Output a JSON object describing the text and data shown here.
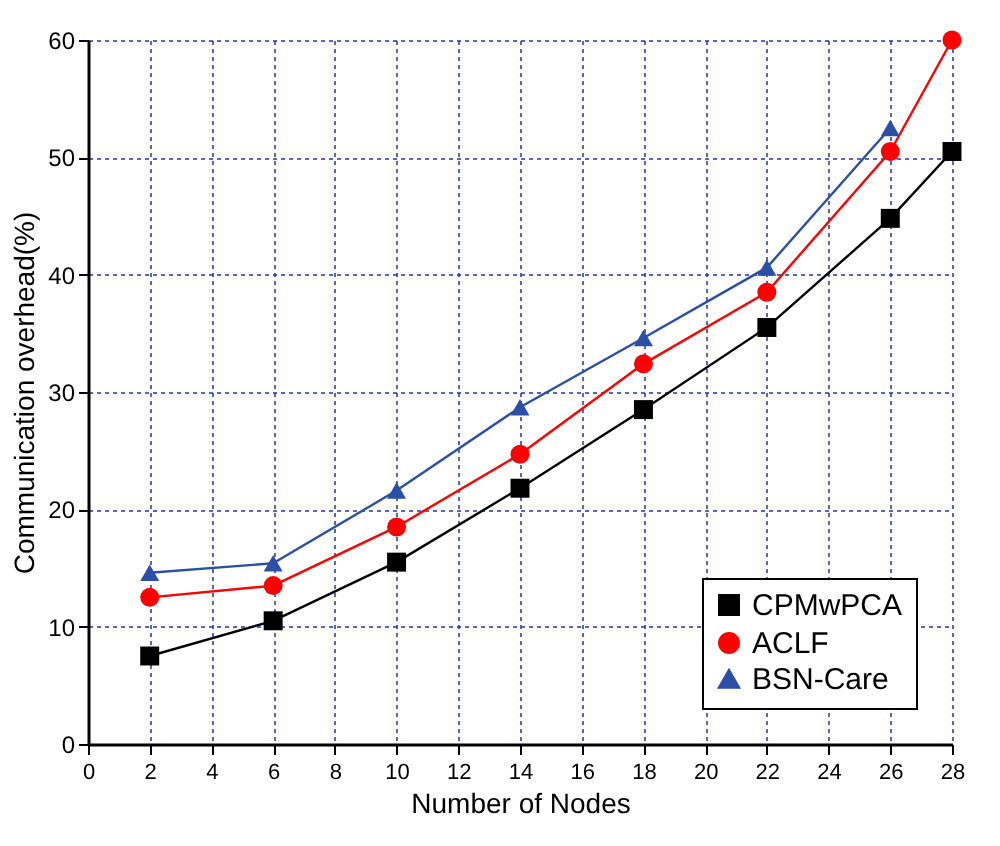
{
  "chart_data": {
    "type": "line",
    "xlabel": "Number of Nodes",
    "ylabel": "Communication overhead(%)",
    "x": [
      2,
      6,
      10,
      14,
      18,
      22,
      26,
      28
    ],
    "series": [
      {
        "name": "CPMwPCA",
        "color": "#000000",
        "marker": "square",
        "values": [
          7.5,
          10.5,
          15.5,
          21.8,
          28.5,
          35.5,
          44.8,
          50.5
        ]
      },
      {
        "name": "ACLF",
        "color": "#ff0000",
        "marker": "circle",
        "values": [
          12.5,
          13.5,
          18.5,
          24.7,
          32.4,
          38.5,
          50.5,
          60
        ]
      },
      {
        "name": "BSN-Care",
        "color": "#2b4ea6",
        "marker": "triangle",
        "values": [
          14.6,
          15.4,
          21.6,
          28.7,
          34.6,
          40.6,
          52.5,
          null
        ]
      }
    ],
    "xlim": [
      0,
      28
    ],
    "xticks": [
      0,
      2,
      4,
      6,
      8,
      10,
      12,
      14,
      16,
      18,
      20,
      22,
      24,
      26,
      28
    ],
    "ylim": [
      0,
      60
    ],
    "yticks": [
      0,
      10,
      20,
      30,
      40,
      50,
      60
    ],
    "grid": true,
    "legend": "bottom right",
    "line_style": "solid"
  }
}
